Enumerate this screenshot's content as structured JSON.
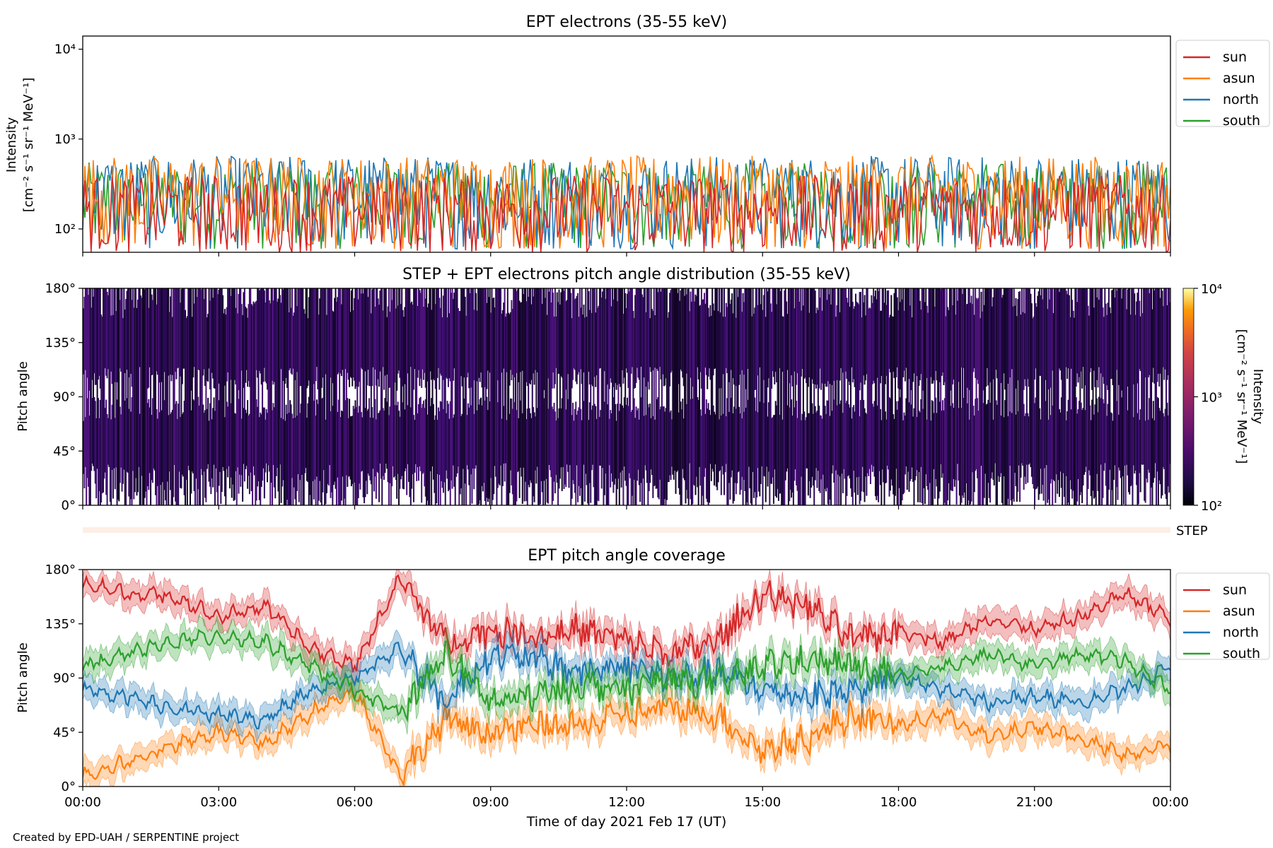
{
  "colors": {
    "sun": "#d62728",
    "asun": "#ff7f0e",
    "north": "#1f77b4",
    "south": "#2ca02c"
  },
  "credit": "Created by EPD-UAH / SERPENTINE project",
  "x_axis": {
    "label": "Time of day 2021 Feb 17 (UT)",
    "ticks": [
      "00:00",
      "03:00",
      "06:00",
      "09:00",
      "12:00",
      "15:00",
      "18:00",
      "21:00",
      "00:00"
    ]
  },
  "chart_data": [
    {
      "type": "line",
      "title": "EPT electrons (35-55 keV)",
      "ylabel": "Intensity",
      "yunit": "[cm⁻² s⁻¹ sr⁻¹ MeV⁻¹]",
      "yscale": "log",
      "ylim": [
        55,
        14000
      ],
      "yticks": [
        "10³",
        "10²",
        "10⁴"
      ],
      "ytick_values": [
        1000,
        100,
        10000
      ],
      "xlim_hours": [
        0,
        24
      ],
      "legend": {
        "placement": "outside-right",
        "entries": [
          "sun",
          "asun",
          "north",
          "south"
        ]
      },
      "series": [
        {
          "name": "sun",
          "typical_range": [
            55,
            400
          ]
        },
        {
          "name": "asun",
          "typical_range": [
            60,
            650
          ]
        },
        {
          "name": "north",
          "typical_range": [
            60,
            650
          ]
        },
        {
          "name": "south",
          "typical_range": [
            60,
            550
          ]
        }
      ]
    },
    {
      "type": "heatmap",
      "title": "STEP + EPT electrons pitch angle distribution (35-55 keV)",
      "ylabel": "Pitch angle",
      "yticks": [
        "0°",
        "45°",
        "90°",
        "135°",
        "180°"
      ],
      "ylim": [
        0,
        180
      ],
      "colorbar": {
        "label": "Intensity",
        "unit": "[cm⁻² s⁻¹ sr⁻¹ MeV⁻¹]",
        "scale": "log",
        "range": [
          100,
          10000
        ],
        "ticks": [
          "10²",
          "10³",
          "10⁴"
        ]
      },
      "step_label": "STEP"
    },
    {
      "type": "line",
      "title": "EPT pitch angle coverage",
      "ylabel": "Pitch angle",
      "yticks": [
        "0°",
        "45°",
        "90°",
        "135°",
        "180°"
      ],
      "ylim": [
        0,
        180
      ],
      "legend": {
        "placement": "outside-right",
        "entries": [
          "sun",
          "asun",
          "north",
          "south"
        ]
      },
      "x_hours": [
        0,
        1,
        2,
        3,
        4,
        5,
        6,
        7,
        8,
        9,
        10,
        11,
        12,
        13,
        14,
        15,
        16,
        17,
        18,
        19,
        20,
        21,
        22,
        23,
        24
      ],
      "series": [
        {
          "name": "sun",
          "values": [
            168,
            160,
            158,
            140,
            150,
            115,
            100,
            172,
            120,
            130,
            125,
            130,
            120,
            110,
            120,
            160,
            150,
            120,
            130,
            120,
            140,
            130,
            140,
            160,
            140
          ]
        },
        {
          "name": "asun",
          "values": [
            10,
            20,
            35,
            45,
            35,
            60,
            80,
            10,
            55,
            45,
            50,
            50,
            60,
            65,
            60,
            30,
            40,
            60,
            50,
            60,
            40,
            50,
            40,
            25,
            35
          ]
        },
        {
          "name": "north",
          "values": [
            80,
            75,
            65,
            60,
            55,
            80,
            90,
            115,
            70,
            110,
            105,
            95,
            100,
            90,
            95,
            80,
            75,
            80,
            90,
            80,
            70,
            75,
            70,
            80,
            100
          ]
        },
        {
          "name": "south",
          "values": [
            100,
            110,
            120,
            125,
            120,
            100,
            80,
            60,
            110,
            70,
            75,
            85,
            80,
            90,
            85,
            100,
            105,
            100,
            90,
            100,
            110,
            100,
            110,
            105,
            80
          ]
        }
      ]
    }
  ]
}
